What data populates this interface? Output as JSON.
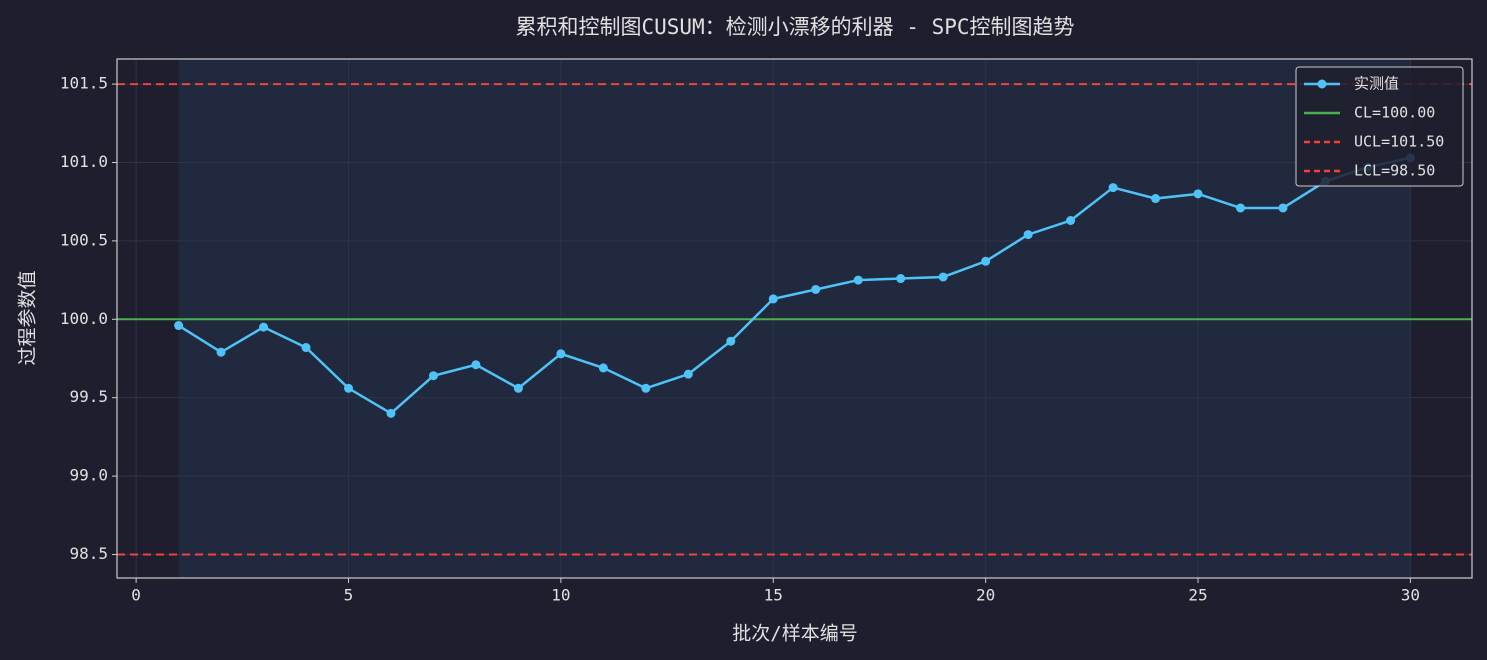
{
  "chart_data": {
    "type": "line",
    "title": "累积和控制图CUSUM：检测小漂移的利器 - SPC控制图趋势",
    "x_label": "批次/样本编号",
    "y_label": "过程参数值",
    "x": [
      1,
      2,
      3,
      4,
      5,
      6,
      7,
      8,
      9,
      10,
      11,
      12,
      13,
      14,
      15,
      16,
      17,
      18,
      19,
      20,
      21,
      22,
      23,
      24,
      25,
      26,
      27,
      28,
      29,
      30
    ],
    "series": [
      {
        "name": "实测值",
        "color": "#4fc3f7",
        "values": [
          99.96,
          99.79,
          99.95,
          99.82,
          99.56,
          99.4,
          99.64,
          99.71,
          99.56,
          99.78,
          99.69,
          99.56,
          99.65,
          99.86,
          100.13,
          100.19,
          100.25,
          100.26,
          100.27,
          100.37,
          100.54,
          100.63,
          100.84,
          100.77,
          100.8,
          100.71,
          100.71,
          100.88,
          100.97,
          101.03
        ]
      }
    ],
    "control_lines": [
      {
        "name": "CL=100.00",
        "value": 100,
        "color": "#4caf50",
        "dashed": false
      },
      {
        "name": "UCL=101.50",
        "value": 101.5,
        "color": "#f44336",
        "dashed": true
      },
      {
        "name": "LCL=98.50",
        "value": 98.5,
        "color": "#f44336",
        "dashed": true
      }
    ],
    "xlim": [
      -0.45,
      31.45
    ],
    "ylim": [
      98.35,
      101.66
    ],
    "xticks": [
      0,
      5,
      10,
      15,
      20,
      25,
      30
    ],
    "yticks": [
      98.5,
      {
        "value": 99,
        "label": "99.0"
      },
      99.5,
      {
        "value": 100,
        "label": "100.0"
      },
      100.5,
      {
        "value": 101,
        "label": "101.0"
      },
      101.5
    ],
    "grid": true,
    "legend": "upper right"
  }
}
